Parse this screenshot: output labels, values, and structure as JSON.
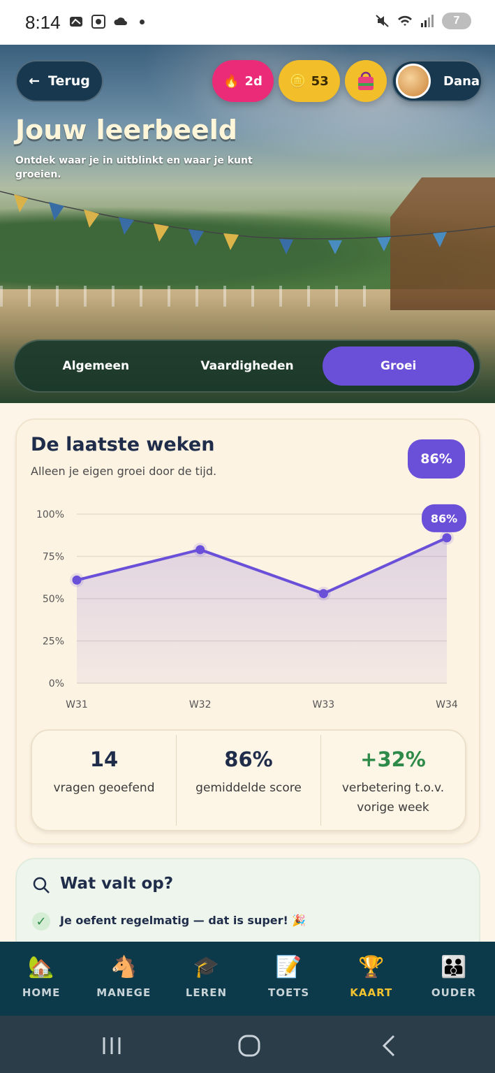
{
  "status_bar": {
    "time": "8:14",
    "battery": "7"
  },
  "hero": {
    "back_label": "Terug",
    "streak": "2d",
    "coins": "53",
    "user_name": "Dana",
    "title": "Jouw leerbeeld",
    "subtitle": "Ontdek waar je in uitblinkt en waar je kunt groeien."
  },
  "tabs": [
    {
      "label": "Algemeen",
      "active": false
    },
    {
      "label": "Vaardigheden",
      "active": false
    },
    {
      "label": "Groei",
      "active": true
    }
  ],
  "growth": {
    "title": "De laatste weken",
    "subtitle": "Alleen je eigen groei door de tijd.",
    "badge": "86%"
  },
  "chart_data": {
    "type": "area",
    "categories": [
      "W31",
      "W32",
      "W33",
      "W34"
    ],
    "series": [
      {
        "values": [
          61,
          79,
          53,
          86
        ]
      }
    ],
    "yticks": [
      "0%",
      "25%",
      "50%",
      "75%",
      "100%"
    ],
    "ylim": [
      0,
      100
    ],
    "annotations": [
      {
        "category": "W34",
        "label": "86%"
      }
    ],
    "grid": true,
    "colors": {
      "line": "#6a4fd8",
      "fill": "#6a4fd8"
    }
  },
  "stats": [
    {
      "value": "14",
      "label": "vragen geoefend",
      "color": "#1f2d4a"
    },
    {
      "value": "86%",
      "label": "gemiddelde score",
      "color": "#1f2d4a"
    },
    {
      "value": "+32%",
      "label": "verbetering t.o.v. vorige week",
      "color": "#2e8a49"
    }
  ],
  "insights": {
    "title": "Wat valt op?",
    "items": [
      "Je oefent regelmatig — dat is super! 🎉"
    ]
  },
  "nav": [
    {
      "label": "HOME",
      "icon": "house-icon",
      "glyph": "🏡",
      "active": false
    },
    {
      "label": "MANEGE",
      "icon": "horse-icon",
      "glyph": "🐴",
      "active": false
    },
    {
      "label": "LEREN",
      "icon": "graduation-cap-icon",
      "glyph": "🎓",
      "active": false
    },
    {
      "label": "TOETS",
      "icon": "memo-icon",
      "glyph": "📝",
      "active": false
    },
    {
      "label": "KAART",
      "icon": "trophy-icon",
      "glyph": "🏆",
      "active": true
    },
    {
      "label": "OUDER",
      "icon": "family-icon",
      "glyph": "👪",
      "active": false
    }
  ]
}
